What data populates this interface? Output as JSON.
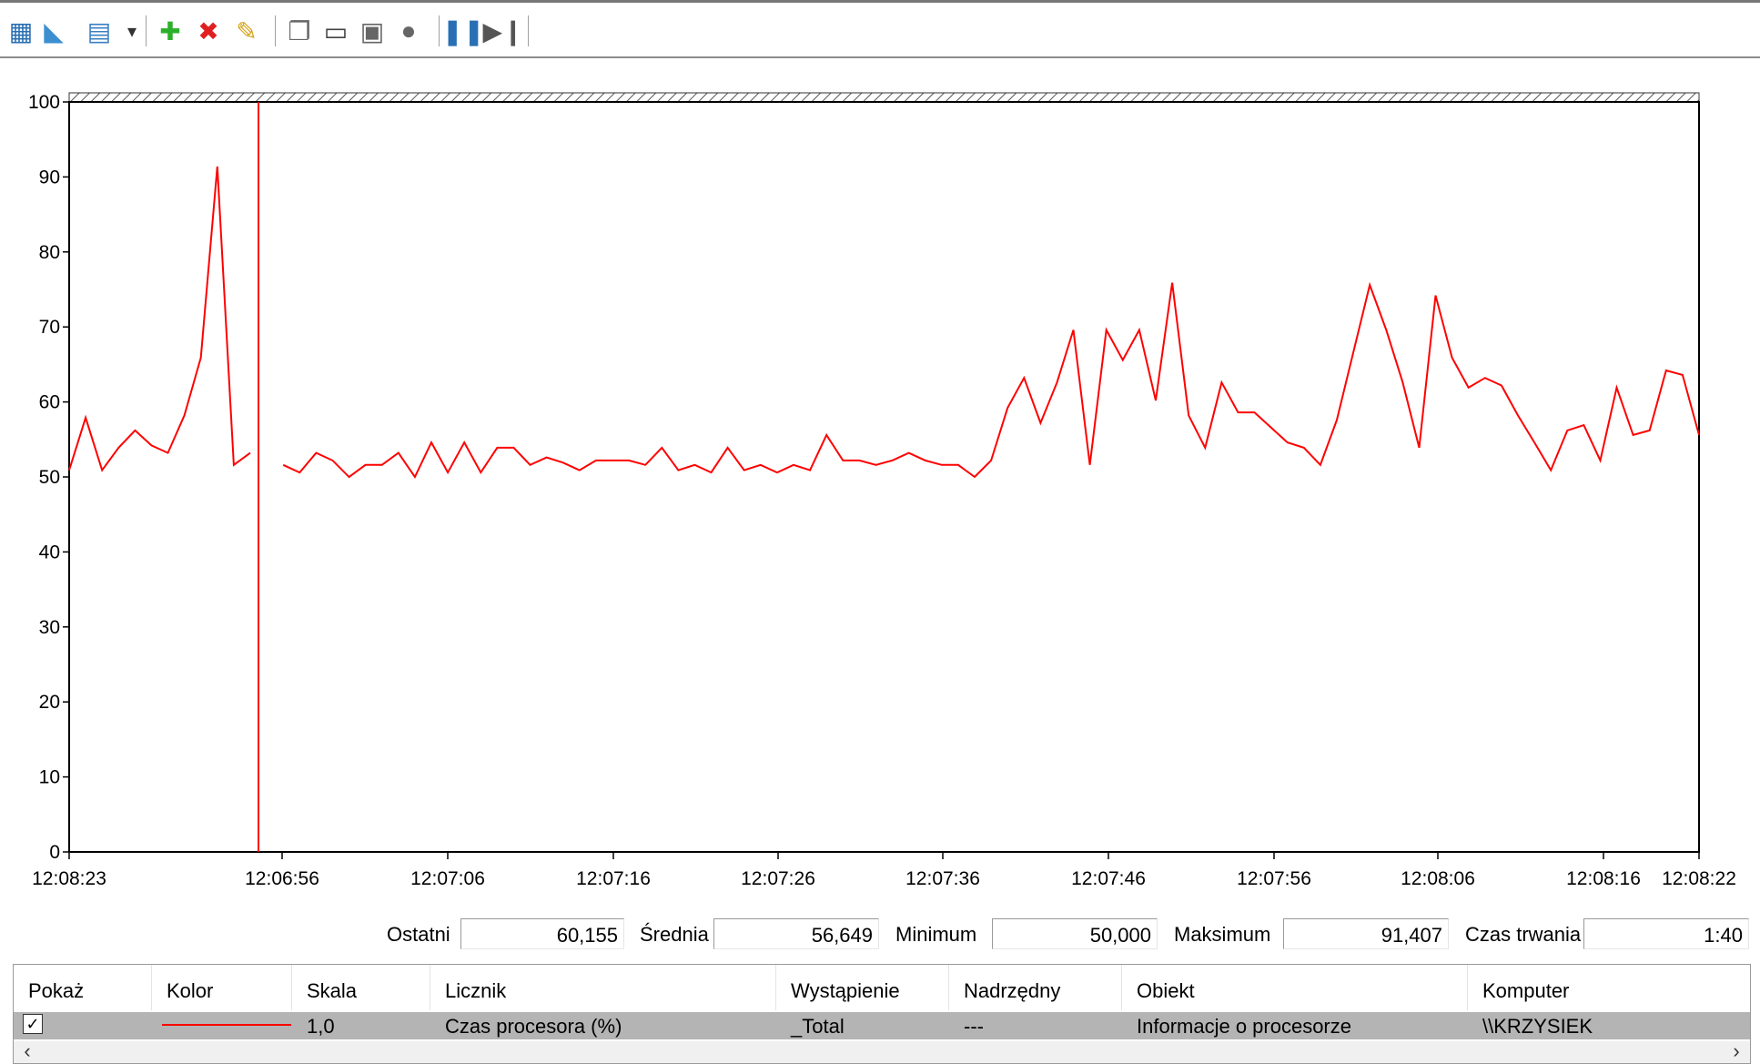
{
  "toolbar": {
    "buttons": [
      {
        "name": "change-graph-type-icon",
        "glyph": "▦",
        "color": "#2a6fb3"
      },
      {
        "name": "view-current-activity-icon",
        "glyph": "◣",
        "color": "#3b8fd1"
      },
      {
        "name": "view-log-data-icon",
        "glyph": "▤",
        "color": "#3b7fc4"
      },
      {
        "name": "dropdown-arrow-icon",
        "glyph": "▾",
        "color": "#333333"
      },
      {
        "name": "add-counter-icon",
        "glyph": "✚",
        "color": "#2bb02b"
      },
      {
        "name": "delete-counter-icon",
        "glyph": "✖",
        "color": "#e02020"
      },
      {
        "name": "highlight-icon",
        "glyph": "✎",
        "color": "#d4a017"
      },
      {
        "name": "copy-properties-icon",
        "glyph": "❐",
        "color": "#666666"
      },
      {
        "name": "paste-counter-list-icon",
        "glyph": "▭",
        "color": "#444444"
      },
      {
        "name": "properties-icon",
        "glyph": "▣",
        "color": "#666666"
      },
      {
        "name": "zoom-icon",
        "glyph": "●",
        "color": "#666666"
      },
      {
        "name": "freeze-display-icon",
        "glyph": "❚❚",
        "color": "#2a6fb3"
      },
      {
        "name": "update-data-icon",
        "glyph": "▶❙",
        "color": "#555555"
      }
    ]
  },
  "colors": {
    "series": "#ff0000",
    "selected_row": "#b4b4b4"
  },
  "chart_data": {
    "type": "line",
    "ylim": [
      0,
      100
    ],
    "y_ticks": [
      "0",
      "10",
      "20",
      "30",
      "40",
      "50",
      "60",
      "70",
      "80",
      "90",
      "100"
    ],
    "x_tick_labels": [
      "12:08:23",
      "12:06:56",
      "12:07:06",
      "12:07:16",
      "12:07:26",
      "12:07:36",
      "12:07:46",
      "12:07:56",
      "12:08:06",
      "12:08:16",
      "12:08:22"
    ],
    "sample_count": 100,
    "gap_after_index": 11,
    "cursor_index": 11,
    "series": [
      {
        "values": [
          50.9,
          57.9,
          50.9,
          53.9,
          56.2,
          54.2,
          53.2,
          58.2,
          65.9,
          91.4,
          51.6,
          53.2,
          51.6,
          50.6,
          53.2,
          52.2,
          50.0,
          51.6,
          51.6,
          53.2,
          50.0,
          54.6,
          50.6,
          54.6,
          50.6,
          53.9,
          53.9,
          51.6,
          52.6,
          51.9,
          50.9,
          52.2,
          52.2,
          52.2,
          51.6,
          53.9,
          50.9,
          51.6,
          50.6,
          53.9,
          50.9,
          51.6,
          50.6,
          51.6,
          50.9,
          55.6,
          52.2,
          52.2,
          51.6,
          52.2,
          53.2,
          52.2,
          51.6,
          51.6,
          50.0,
          52.2,
          59.2,
          63.2,
          57.2,
          62.6,
          69.6,
          51.6,
          69.6,
          65.6,
          69.6,
          60.2,
          75.9,
          58.2,
          53.9,
          62.6,
          58.6,
          58.6,
          56.6,
          54.6,
          53.9,
          51.6,
          57.6,
          66.6,
          75.6,
          69.6,
          62.6,
          53.9,
          74.2,
          65.9,
          61.9,
          63.2,
          62.2,
          58.2,
          54.6,
          50.9,
          56.2,
          56.9,
          52.2,
          61.9,
          55.6,
          56.2,
          64.2,
          63.6,
          55.6,
          60.2
        ]
      }
    ]
  },
  "stats": {
    "last_label": "Ostatni",
    "last_value": "60,155",
    "avg_label": "Średnia",
    "avg_value": "56,649",
    "min_label": "Minimum",
    "min_value": "50,000",
    "max_label": "Maksimum",
    "max_value": "91,407",
    "dur_label": "Czas trwania",
    "dur_value": "1:40"
  },
  "legend": {
    "columns": [
      "Pokaż",
      "Kolor",
      "Skala",
      "Licznik",
      "Wystąpienie",
      "Nadrzędny",
      "Obiekt",
      "Komputer"
    ],
    "row": {
      "checked": "✓",
      "scale": "1,0",
      "counter": "Czas procesora (%)",
      "instance": "_Total",
      "parent": "---",
      "object": "Informacje o procesorze",
      "computer": "\\\\KRZYSIEK"
    }
  }
}
